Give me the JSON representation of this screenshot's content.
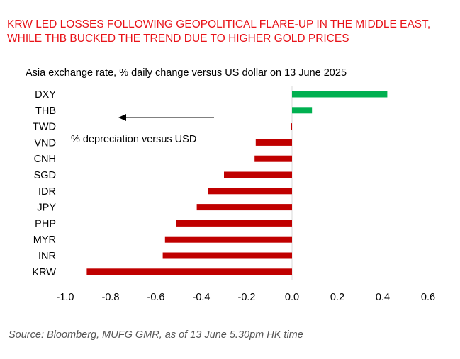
{
  "title": "KRW LED LOSSES FOLLOWING GEOPOLITICAL FLARE-UP IN THE MIDDLE EAST, WHILE THB BUCKED THE TREND DUE TO HIGHER GOLD PRICES",
  "source": "Source: Bloomberg, MUFG GMR, as of 13 June 5.30pm HK time",
  "chart_data": {
    "type": "bar",
    "orientation": "horizontal",
    "subtitle": "Asia exchange rate, % daily change versus US dollar on 13 June 2025",
    "annotation": "% depreciation versus USD",
    "categories": [
      "DXY",
      "THB",
      "TWD",
      "VND",
      "CNH",
      "SGD",
      "IDR",
      "JPY",
      "PHP",
      "MYR",
      "INR",
      "KRW"
    ],
    "values": [
      0.42,
      0.088,
      -0.005,
      -0.16,
      -0.165,
      -0.3,
      -0.37,
      -0.42,
      -0.51,
      -0.56,
      -0.57,
      -0.905
    ],
    "xlim": [
      -1.0,
      0.6
    ],
    "xticks": [
      "-1.0",
      "-0.8",
      "-0.6",
      "-0.4",
      "-0.2",
      "0.0",
      "0.2",
      "0.4",
      "0.6"
    ],
    "grid": false,
    "colors": {
      "positive": "#00b050",
      "negative": "#c00000",
      "title": "#e8141a"
    }
  }
}
